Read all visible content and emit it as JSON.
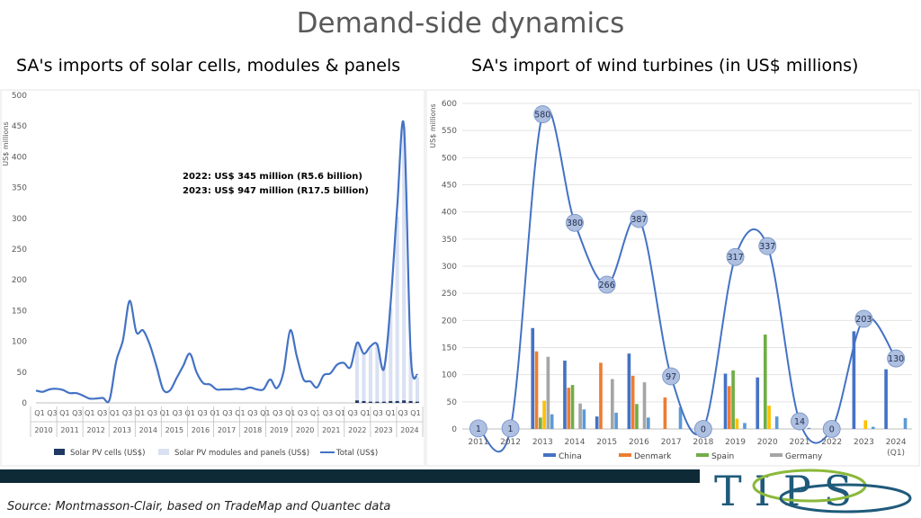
{
  "page": {
    "title": "Demand-side dynamics",
    "source": "Source: Montmasson-Clair, based on TradeMap and Quantec data",
    "logo_text": "TIPS",
    "colors": {
      "band": "#0d2a36",
      "logo_blue": "#1f5a7a",
      "logo_green": "#8bb83a"
    }
  },
  "chart_data": [
    {
      "type": "line",
      "title": "SA's imports of solar cells, modules & panels",
      "ylabel": "US$ millions",
      "ylim": [
        0,
        500
      ],
      "yticks": [
        0,
        50,
        100,
        150,
        200,
        250,
        300,
        350,
        400,
        450,
        500
      ],
      "grid": false,
      "legend_position": "bottom",
      "quarter_labels": [
        "Q1",
        "Q3",
        "Q1",
        "Q3",
        "Q1",
        "Q3",
        "Q1",
        "Q3",
        "Q1",
        "Q3",
        "Q1",
        "Q3",
        "Q1",
        "Q3",
        "Q1",
        "Q3",
        "Q1",
        "Q3",
        "Q1",
        "Q3",
        "Q1",
        "Q3",
        "Q1",
        "Q3",
        "Q1",
        "Q3",
        "Q1",
        "Q3",
        "Q1",
        "Q3",
        "Q1"
      ],
      "years": [
        "2010",
        "2011",
        "2012",
        "2013",
        "2014",
        "2015",
        "2016",
        "2017",
        "2018",
        "2019",
        "2020",
        "2021",
        "2022",
        "2023",
        "2024"
      ],
      "annotation": [
        "2022: US$ 345 million (R5.6 billion)",
        "2023: US$ 947 million (R17.5 billion)"
      ],
      "series": [
        {
          "name": "Solar PV cells (US$)",
          "color": "#1f3864",
          "values": [
            0,
            0,
            0,
            0,
            0,
            0,
            0,
            0,
            0,
            0,
            0,
            0,
            0,
            0,
            0,
            0,
            0,
            0,
            0,
            0,
            0,
            0,
            0,
            0,
            0,
            0,
            0,
            0,
            0,
            0,
            0,
            0,
            0,
            0,
            0,
            0,
            0,
            0,
            0,
            0,
            0,
            0,
            0,
            0,
            0,
            0,
            0,
            0,
            4,
            3,
            2,
            2,
            2,
            3,
            3,
            4,
            3,
            2
          ]
        },
        {
          "name": "Solar PV modules and panels (US$)",
          "color": "#d9e1f2",
          "values": [
            0,
            0,
            0,
            0,
            0,
            0,
            0,
            0,
            0,
            0,
            0,
            0,
            0,
            0,
            0,
            0,
            0,
            0,
            0,
            0,
            0,
            0,
            0,
            0,
            0,
            0,
            0,
            0,
            0,
            0,
            0,
            0,
            0,
            0,
            0,
            0,
            0,
            0,
            0,
            0,
            0,
            0,
            0,
            0,
            0,
            0,
            0,
            0,
            94,
            78,
            88,
            93,
            58,
            152,
            300,
            445,
            80,
            40
          ]
        },
        {
          "name": "Total (US$)",
          "color": "#4472c4",
          "values": [
            20,
            18,
            22,
            23,
            21,
            16,
            16,
            12,
            7,
            7,
            8,
            5,
            68,
            102,
            166,
            115,
            118,
            95,
            60,
            22,
            20,
            40,
            60,
            80,
            50,
            32,
            30,
            22,
            22,
            22,
            23,
            22,
            25,
            22,
            22,
            38,
            24,
            50,
            118,
            75,
            38,
            35,
            25,
            45,
            48,
            62,
            65,
            58,
            98,
            80,
            92,
            95,
            55,
            160,
            320,
            450,
            80,
            45
          ]
        }
      ]
    },
    {
      "type": "bar",
      "title": "SA's import of wind turbines (in US$ millions)",
      "ylabel": "US$ millions",
      "ylim": [
        0,
        600
      ],
      "yticks": [
        0,
        50,
        100,
        150,
        200,
        250,
        300,
        350,
        400,
        450,
        500,
        550,
        600
      ],
      "grid": true,
      "legend_position": "bottom",
      "categories": [
        "2011",
        "2012",
        "2013",
        "2014",
        "2015",
        "2016",
        "2017",
        "2018",
        "2019",
        "2020",
        "2021",
        "2022",
        "2023",
        "2024 (Q1)"
      ],
      "total_labels": [
        "1",
        "1",
        "580",
        "380",
        "266",
        "387",
        "97",
        "0",
        "317",
        "337",
        "14",
        "0",
        "203",
        "130"
      ],
      "total_values": [
        1,
        1,
        580,
        380,
        266,
        387,
        97,
        0,
        317,
        337,
        14,
        0,
        203,
        130
      ],
      "series": [
        {
          "name": "China",
          "color": "#4472c4",
          "values": [
            0,
            0,
            186,
            126,
            23,
            139,
            0,
            0,
            102,
            95,
            0,
            0,
            180,
            110
          ]
        },
        {
          "name": "Denmark",
          "color": "#ed7d31",
          "values": [
            0,
            0,
            143,
            76,
            122,
            98,
            58,
            0,
            79,
            0,
            0,
            0,
            0,
            0
          ]
        },
        {
          "name": "Spain",
          "color": "#70ad47",
          "values": [
            0,
            0,
            21,
            81,
            0,
            46,
            0,
            0,
            108,
            174,
            0,
            0,
            0,
            0
          ]
        },
        {
          "name": "",
          "color": "#ffc000",
          "values": [
            0,
            0,
            52,
            0,
            0,
            0,
            0,
            0,
            19,
            43,
            0,
            0,
            16,
            0
          ]
        },
        {
          "name": "Germany",
          "color": "#a5a5a5",
          "values": [
            0,
            0,
            133,
            47,
            92,
            86,
            0,
            0,
            0,
            0,
            0,
            0,
            0,
            0
          ]
        },
        {
          "name": "",
          "color": "#5b9bd5",
          "values": [
            0,
            0,
            27,
            36,
            30,
            21,
            40,
            0,
            11,
            23,
            2,
            0,
            4,
            20
          ]
        }
      ]
    }
  ]
}
